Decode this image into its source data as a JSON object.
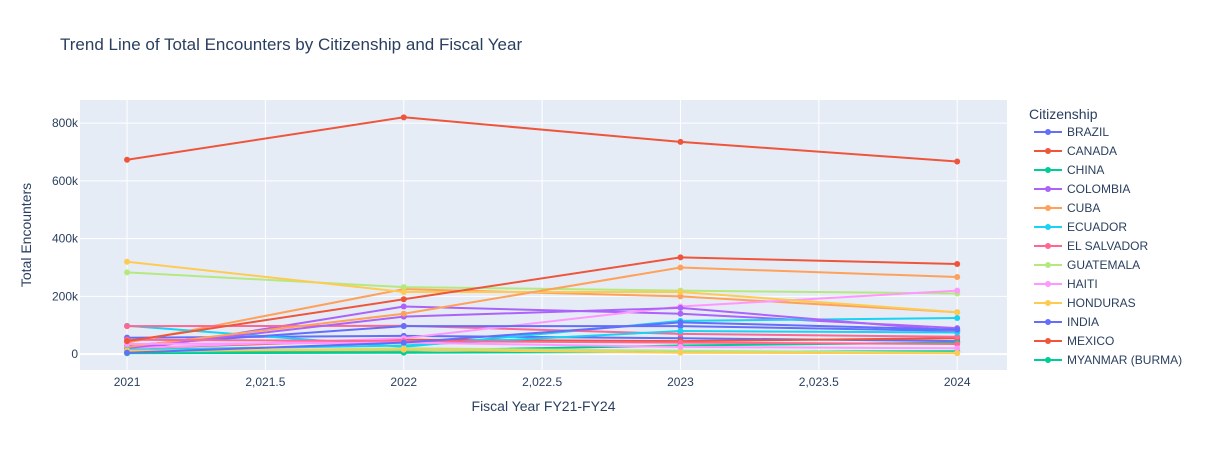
{
  "chart_data": {
    "type": "line",
    "title": "Trend Line of Total Encounters by Citizenship and Fiscal Year",
    "xlabel": "Fiscal Year FY21-FY24",
    "ylabel": "Total Encounters",
    "x": [
      2021,
      2022,
      2023,
      2024
    ],
    "xlim": [
      2020.83,
      2024.18
    ],
    "ylim": [
      -55000,
      880000
    ],
    "x_ticks": [
      2021,
      2021.5,
      2022,
      2022.5,
      2023,
      2023.5,
      2024
    ],
    "x_tick_labels": [
      "2021",
      "2,021.5",
      "2022",
      "2,022.5",
      "2023",
      "2,023.5",
      "2024"
    ],
    "y_ticks": [
      0,
      200000,
      400000,
      600000,
      800000
    ],
    "y_tick_labels": [
      "0",
      "200k",
      "400k",
      "600k",
      "800k"
    ],
    "grid": true,
    "legend_title": "Citizenship",
    "legend_position": "right",
    "series": [
      {
        "name": "BRAZIL",
        "color": "#636efa",
        "values": [
          57000,
          63000,
          55000,
          45000
        ]
      },
      {
        "name": "CANADA",
        "color": "#EF553B",
        "values": [
          20000,
          50000,
          45000,
          55000
        ]
      },
      {
        "name": "CHINA",
        "color": "#00cc96",
        "values": [
          10000,
          12000,
          30000,
          40000
        ]
      },
      {
        "name": "COLOMBIA",
        "color": "#ab63fa",
        "values": [
          10000,
          165000,
          140000,
          90000
        ]
      },
      {
        "name": "CUBA",
        "color": "#FFA15A",
        "values": [
          40000,
          225000,
          200000,
          145000
        ]
      },
      {
        "name": "ECUADOR",
        "color": "#19d3f3",
        "values": [
          98000,
          25000,
          115000,
          125000
        ]
      },
      {
        "name": "EL SALVADOR",
        "color": "#FF6692",
        "values": [
          97000,
          98000,
          70000,
          60000
        ]
      },
      {
        "name": "GUATEMALA",
        "color": "#B6E880",
        "values": [
          283000,
          232000,
          220000,
          210000
        ]
      },
      {
        "name": "HAITI",
        "color": "#FF97FF",
        "values": [
          20000,
          55000,
          165000,
          220000
        ]
      },
      {
        "name": "HONDURAS",
        "color": "#FECB52",
        "values": [
          320000,
          215000,
          215000,
          145000
        ]
      },
      {
        "name": "INDIA",
        "color": "#636efa",
        "values": [
          30000,
          97000,
          97000,
          80000
        ]
      },
      {
        "name": "MEXICO",
        "color": "#EF553B",
        "values": [
          673000,
          820000,
          735000,
          667000
        ]
      },
      {
        "name": "MYANMAR (BURMA)",
        "color": "#00cc96",
        "values": [
          3000,
          5000,
          8000,
          10000
        ]
      },
      {
        "color": "#ab63fa",
        "values": [
          20000,
          130000,
          160000,
          80000
        ]
      },
      {
        "color": "#FFA15A",
        "values": [
          25000,
          140000,
          300000,
          267000
        ]
      },
      {
        "color": "#19d3f3",
        "values": [
          15000,
          30000,
          80000,
          75000
        ]
      },
      {
        "color": "#FF6692",
        "values": [
          50000,
          45000,
          40000,
          35000
        ]
      },
      {
        "color": "#B6E880",
        "values": [
          8000,
          20000,
          12000,
          5000
        ]
      },
      {
        "color": "#FF97FF",
        "values": [
          35000,
          40000,
          25000,
          20000
        ]
      },
      {
        "color": "#FECB52",
        "values": [
          12000,
          15000,
          5000,
          3000
        ]
      },
      {
        "color": "#636efa",
        "values": [
          5000,
          40000,
          110000,
          85000
        ]
      },
      {
        "color": "#EF553B",
        "values": [
          45000,
          190000,
          335000,
          312000
        ]
      }
    ]
  }
}
